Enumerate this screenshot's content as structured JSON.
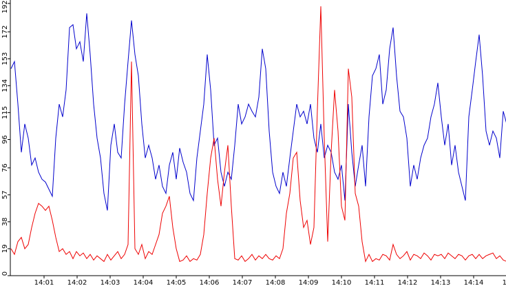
{
  "chart_data": {
    "type": "line",
    "x": [
      0,
      6.25,
      12.5,
      18.75,
      25,
      31.25,
      37.5,
      43.75,
      50,
      56.25,
      62.5,
      68.75,
      75,
      81.25,
      87.5,
      93.75,
      100,
      106.25,
      112.5,
      118.75,
      125,
      131.25,
      137.5,
      143.75,
      150,
      156.25,
      162.5,
      168.75,
      175,
      181.25,
      187.5,
      193.75,
      200,
      206.25,
      212.5,
      218.75,
      225,
      231.25,
      237.5,
      243.75,
      250,
      256.25,
      262.5,
      268.75,
      275,
      281.25,
      287.5,
      293.75,
      300,
      306.25,
      312.5,
      318.75,
      325,
      331.25,
      337.5,
      343.75,
      350,
      356.25,
      362.5,
      368.75,
      375,
      381.25,
      387.5,
      393.75,
      400,
      406.25,
      412.5,
      418.75,
      425,
      431.25,
      437.5,
      443.75,
      450,
      456.25,
      462.5,
      468.75,
      475,
      481.25,
      487.5,
      493.75,
      500,
      506.25,
      512.5,
      518.75,
      525,
      531.25,
      537.5,
      543.75,
      550,
      556.25,
      562.5,
      568.75,
      575,
      581.25,
      587.5,
      593.75,
      600,
      606.25,
      612.5,
      618.75,
      625,
      631.25,
      637.5,
      643.75,
      650,
      656.25,
      662.5,
      668.75,
      675,
      681.25,
      687.5,
      693.75,
      700,
      706.25,
      712.5,
      718.75,
      725,
      731.25,
      737.5,
      743.75,
      750,
      756.25,
      762.5,
      768.75,
      775,
      781.25,
      787.5,
      793.75,
      800,
      806.25,
      812.5,
      818.75,
      825,
      831.25,
      837.5,
      843.75,
      850,
      856.25,
      862.5,
      868.75,
      875,
      881.25,
      887.5,
      893.75,
      900
    ],
    "series": [
      {
        "color": "#0000cc",
        "values": [
          146,
          151,
          121,
          87,
          107,
          97,
          78,
          83,
          73,
          68,
          66,
          61,
          56,
          97,
          121,
          112,
          131,
          175,
          177,
          160,
          165,
          151,
          185,
          156,
          121,
          97,
          83,
          58,
          46,
          92,
          107,
          87,
          83,
          121,
          151,
          180,
          156,
          141,
          107,
          83,
          92,
          83,
          68,
          78,
          63,
          58,
          78,
          87,
          68,
          90,
          80,
          73,
          58,
          53,
          83,
          102,
          121,
          156,
          131,
          92,
          97,
          73,
          63,
          73,
          68,
          92,
          121,
          107,
          112,
          121,
          116,
          112,
          126,
          160,
          146,
          102,
          73,
          63,
          58,
          73,
          63,
          83,
          102,
          121,
          112,
          116,
          107,
          121,
          97,
          87,
          107,
          83,
          92,
          87,
          73,
          68,
          78,
          53,
          121,
          87,
          63,
          78,
          92,
          63,
          112,
          141,
          146,
          156,
          121,
          131,
          160,
          175,
          141,
          116,
          112,
          97,
          63,
          78,
          68,
          83,
          92,
          97,
          112,
          121,
          136,
          112,
          92,
          107,
          78,
          92,
          73,
          63,
          53,
          112,
          131,
          151,
          170,
          141,
          102,
          92,
          102,
          97,
          83,
          116,
          107
        ]
      },
      {
        "color": "#ee0000",
        "values": [
          19,
          15,
          24,
          27,
          19,
          22,
          34,
          44,
          51,
          49,
          46,
          49,
          39,
          27,
          17,
          19,
          15,
          17,
          12,
          17,
          14,
          16,
          12,
          15,
          11,
          14,
          12,
          10,
          15,
          11,
          14,
          17,
          12,
          15,
          22,
          151,
          19,
          15,
          22,
          12,
          17,
          15,
          22,
          29,
          44,
          49,
          56,
          34,
          19,
          10,
          11,
          14,
          10,
          12,
          11,
          15,
          29,
          58,
          83,
          97,
          68,
          49,
          73,
          92,
          49,
          12,
          11,
          14,
          10,
          12,
          15,
          11,
          14,
          12,
          15,
          12,
          11,
          14,
          12,
          19,
          44,
          58,
          83,
          87,
          53,
          34,
          39,
          22,
          34,
          117,
          190,
          97,
          24,
          87,
          131,
          102,
          49,
          39,
          146,
          126,
          58,
          49,
          24,
          10,
          15,
          10,
          12,
          11,
          15,
          14,
          11,
          22,
          15,
          12,
          14,
          17,
          11,
          15,
          14,
          12,
          16,
          14,
          11,
          15,
          14,
          15,
          12,
          16,
          14,
          12,
          15,
          14,
          11,
          14,
          15,
          12,
          15,
          12,
          14,
          15,
          16,
          12,
          14,
          11,
          10
        ]
      }
    ],
    "xlim": [
      0,
      900
    ],
    "xticks": [
      {
        "value": 60,
        "label": "14:01"
      },
      {
        "value": 120,
        "label": "14:02"
      },
      {
        "value": 180,
        "label": "14:03"
      },
      {
        "value": 240,
        "label": "14:04"
      },
      {
        "value": 300,
        "label": "14:05"
      },
      {
        "value": 360,
        "label": "14:06"
      },
      {
        "value": 420,
        "label": "14:07"
      },
      {
        "value": 480,
        "label": "14:08"
      },
      {
        "value": 540,
        "label": "14:09"
      },
      {
        "value": 600,
        "label": "14:10"
      },
      {
        "value": 660,
        "label": "14:11"
      },
      {
        "value": 720,
        "label": "14:12"
      },
      {
        "value": 780,
        "label": "14:13"
      },
      {
        "value": 840,
        "label": "14:14"
      },
      {
        "value": 900,
        "label": "14"
      }
    ],
    "ylim": [
      0,
      192
    ],
    "yticks": [
      0,
      19,
      38,
      57,
      76,
      96,
      115,
      134,
      153,
      172,
      192
    ]
  }
}
